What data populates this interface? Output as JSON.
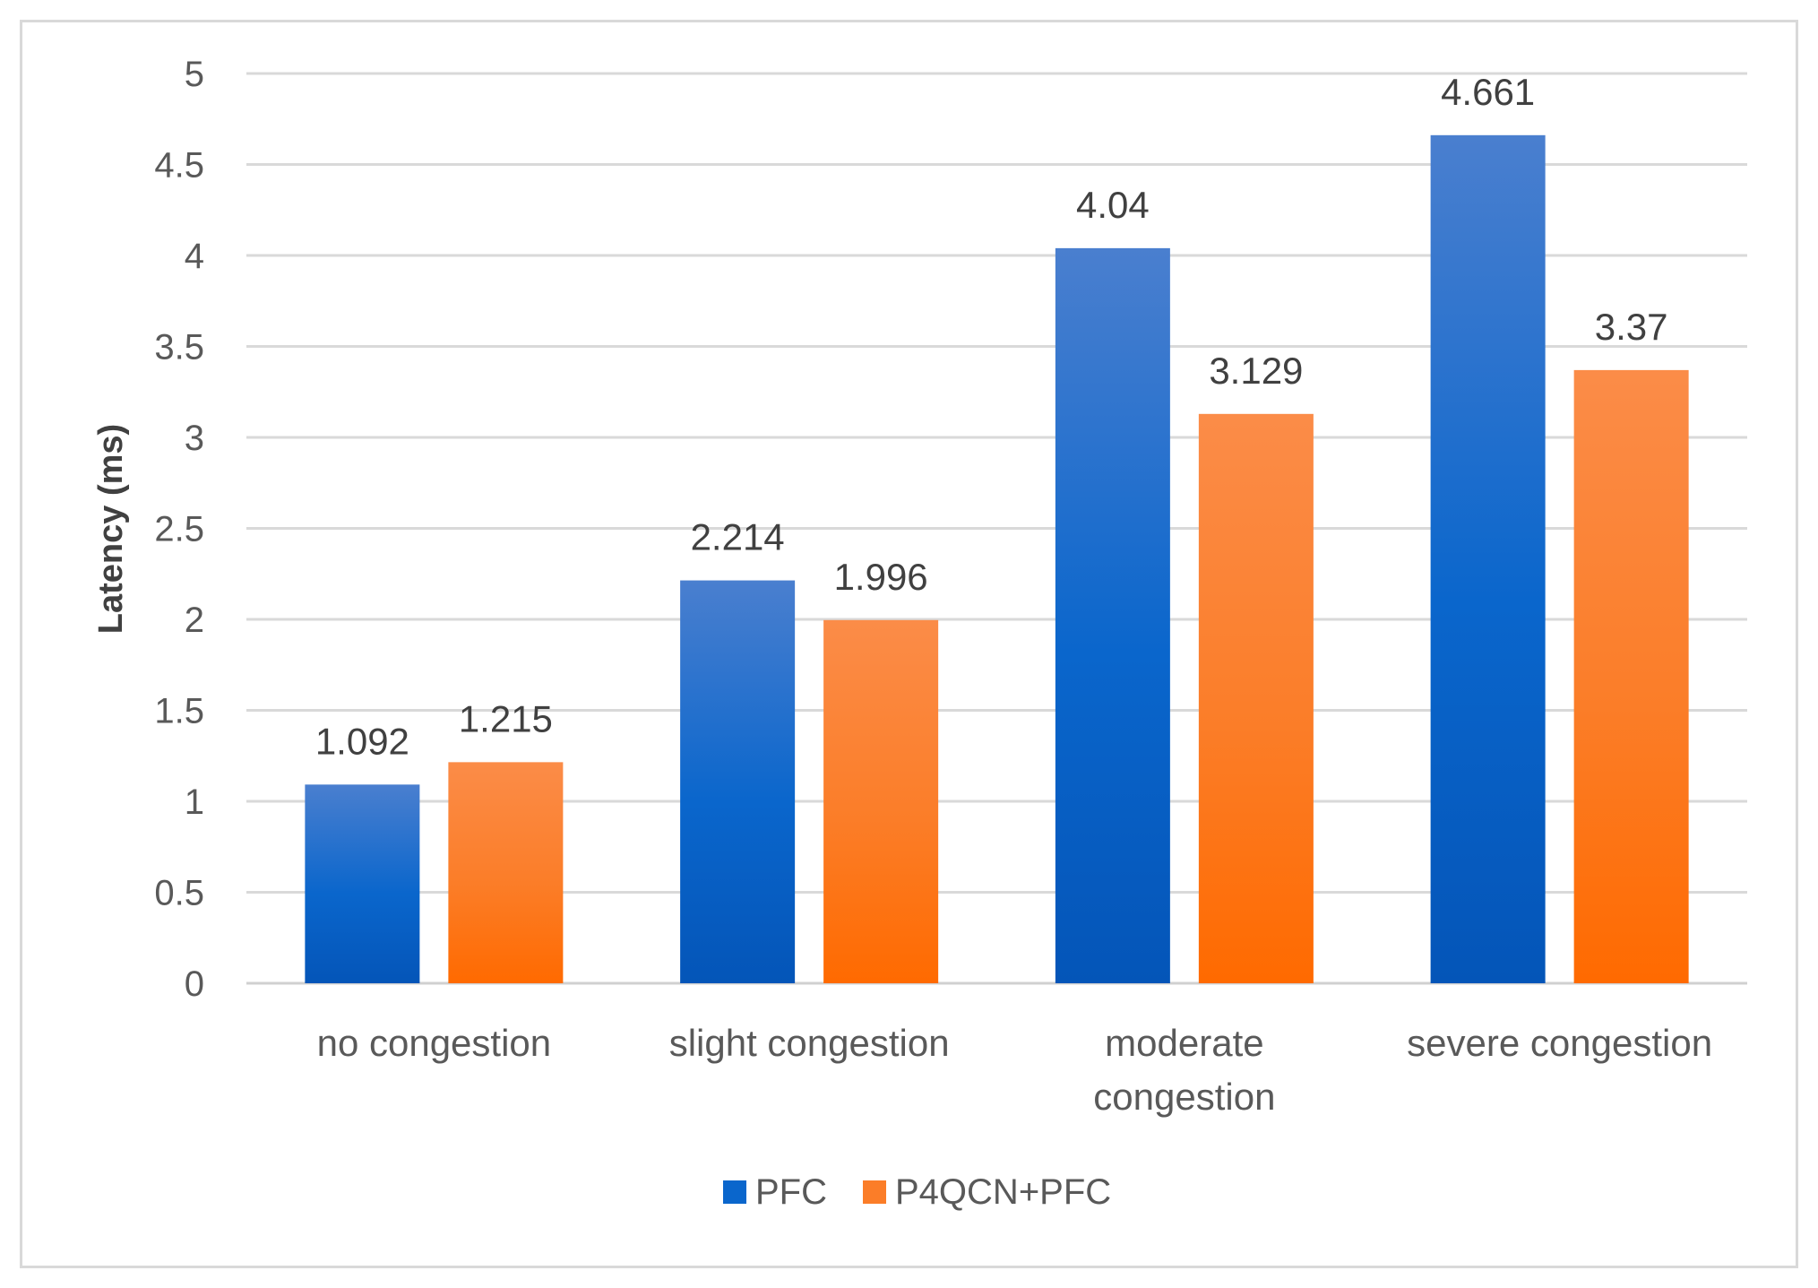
{
  "chart_data": {
    "type": "bar",
    "title": "",
    "xlabel": "",
    "ylabel": "Latency (ms)",
    "ylim": [
      0,
      5
    ],
    "yticks": [
      0,
      0.5,
      1,
      1.5,
      2,
      2.5,
      3,
      3.5,
      4,
      4.5,
      5
    ],
    "grid": true,
    "legend_position": "bottom",
    "categories": [
      [
        "no congestion"
      ],
      [
        "slight congestion"
      ],
      [
        "moderate",
        "congestion"
      ],
      [
        "severe congestion"
      ]
    ],
    "series": [
      {
        "name": "PFC",
        "values": [
          1.092,
          2.214,
          4.04,
          4.661
        ],
        "labels": [
          "1.092",
          "2.214",
          "4.04",
          "4.661"
        ],
        "color_top": "#4a7fcf",
        "color_bottom": "#0455b8",
        "color_mid": "#0a66cc"
      },
      {
        "name": "P4QCN+PFC",
        "values": [
          1.215,
          1.996,
          3.129,
          3.37
        ],
        "labels": [
          "1.215",
          "1.996",
          "3.129",
          "3.37"
        ],
        "color_top": "#fb8c48",
        "color_bottom": "#ff6a00",
        "color_mid": "#fb7d28"
      }
    ],
    "colors": {
      "grid": "#d9d9d9",
      "axis": "#d0d0d0",
      "text": "#595959"
    }
  }
}
